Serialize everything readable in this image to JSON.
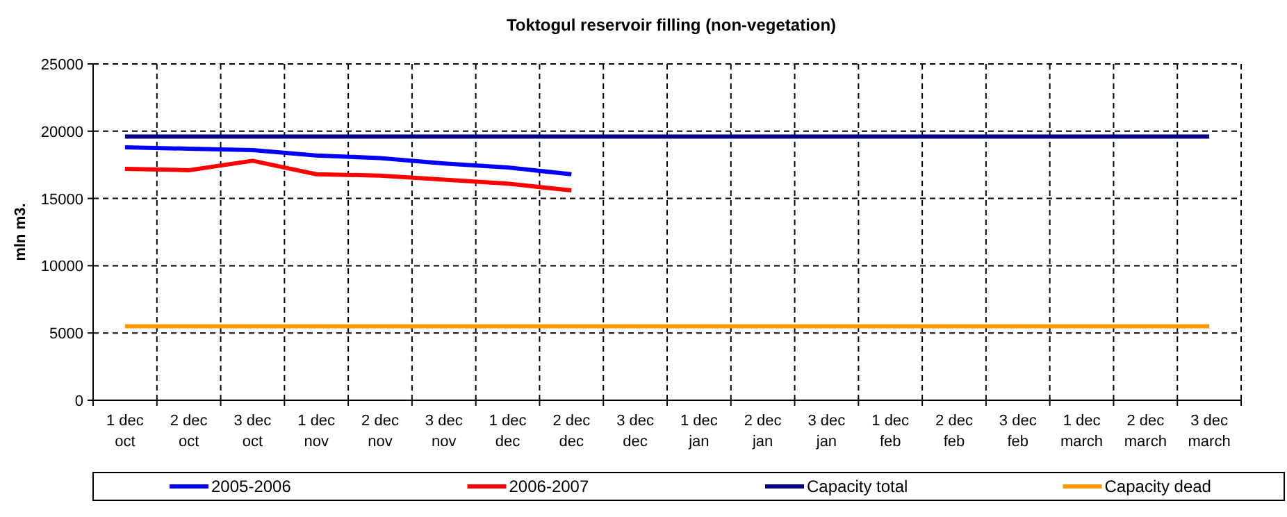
{
  "chart_data": {
    "type": "line",
    "title": "Toktogul  reservoir filling (non-vegetation)",
    "ylabel": "mln m3.",
    "categories": [
      "1 dec\noct",
      "2 dec\noct",
      "3 dec\noct",
      "1 dec\nnov",
      "2 dec\nnov",
      "3 dec\nnov",
      "1 dec\ndec",
      "2 dec\ndec",
      "3 dec\ndec",
      "1 dec\njan",
      "2 dec\njan",
      "3 dec\njan",
      "1 dec\nfeb",
      "2 dec\nfeb",
      "3 dec\nfeb",
      "1 dec\nmarch",
      "2 dec\nmarch",
      "3 dec\nmarch"
    ],
    "series": [
      {
        "name": "2005-2006",
        "color": "#0000ff",
        "values": [
          18800,
          18700,
          18600,
          18200,
          18000,
          17600,
          17300,
          16800,
          null,
          null,
          null,
          null,
          null,
          null,
          null,
          null,
          null,
          null
        ]
      },
      {
        "name": "2006-2007",
        "color": "#ff0000",
        "values": [
          17200,
          17100,
          17800,
          16800,
          16700,
          16400,
          16100,
          15600,
          null,
          null,
          null,
          null,
          null,
          null,
          null,
          null,
          null,
          null
        ]
      },
      {
        "name": "Capacity total",
        "color": "#000080",
        "values": [
          19600,
          19600,
          19600,
          19600,
          19600,
          19600,
          19600,
          19600,
          19600,
          19600,
          19600,
          19600,
          19600,
          19600,
          19600,
          19600,
          19600,
          19600
        ]
      },
      {
        "name": "Capacity dead",
        "color": "#ff9900",
        "values": [
          5500,
          5500,
          5500,
          5500,
          5500,
          5500,
          5500,
          5500,
          5500,
          5500,
          5500,
          5500,
          5500,
          5500,
          5500,
          5500,
          5500,
          5500
        ]
      }
    ],
    "ylim": [
      0,
      25000
    ],
    "yticks": [
      0,
      5000,
      10000,
      15000,
      20000,
      25000
    ],
    "grid": true,
    "legend": "bottom",
    "marker": "none",
    "line_style": "solid"
  }
}
